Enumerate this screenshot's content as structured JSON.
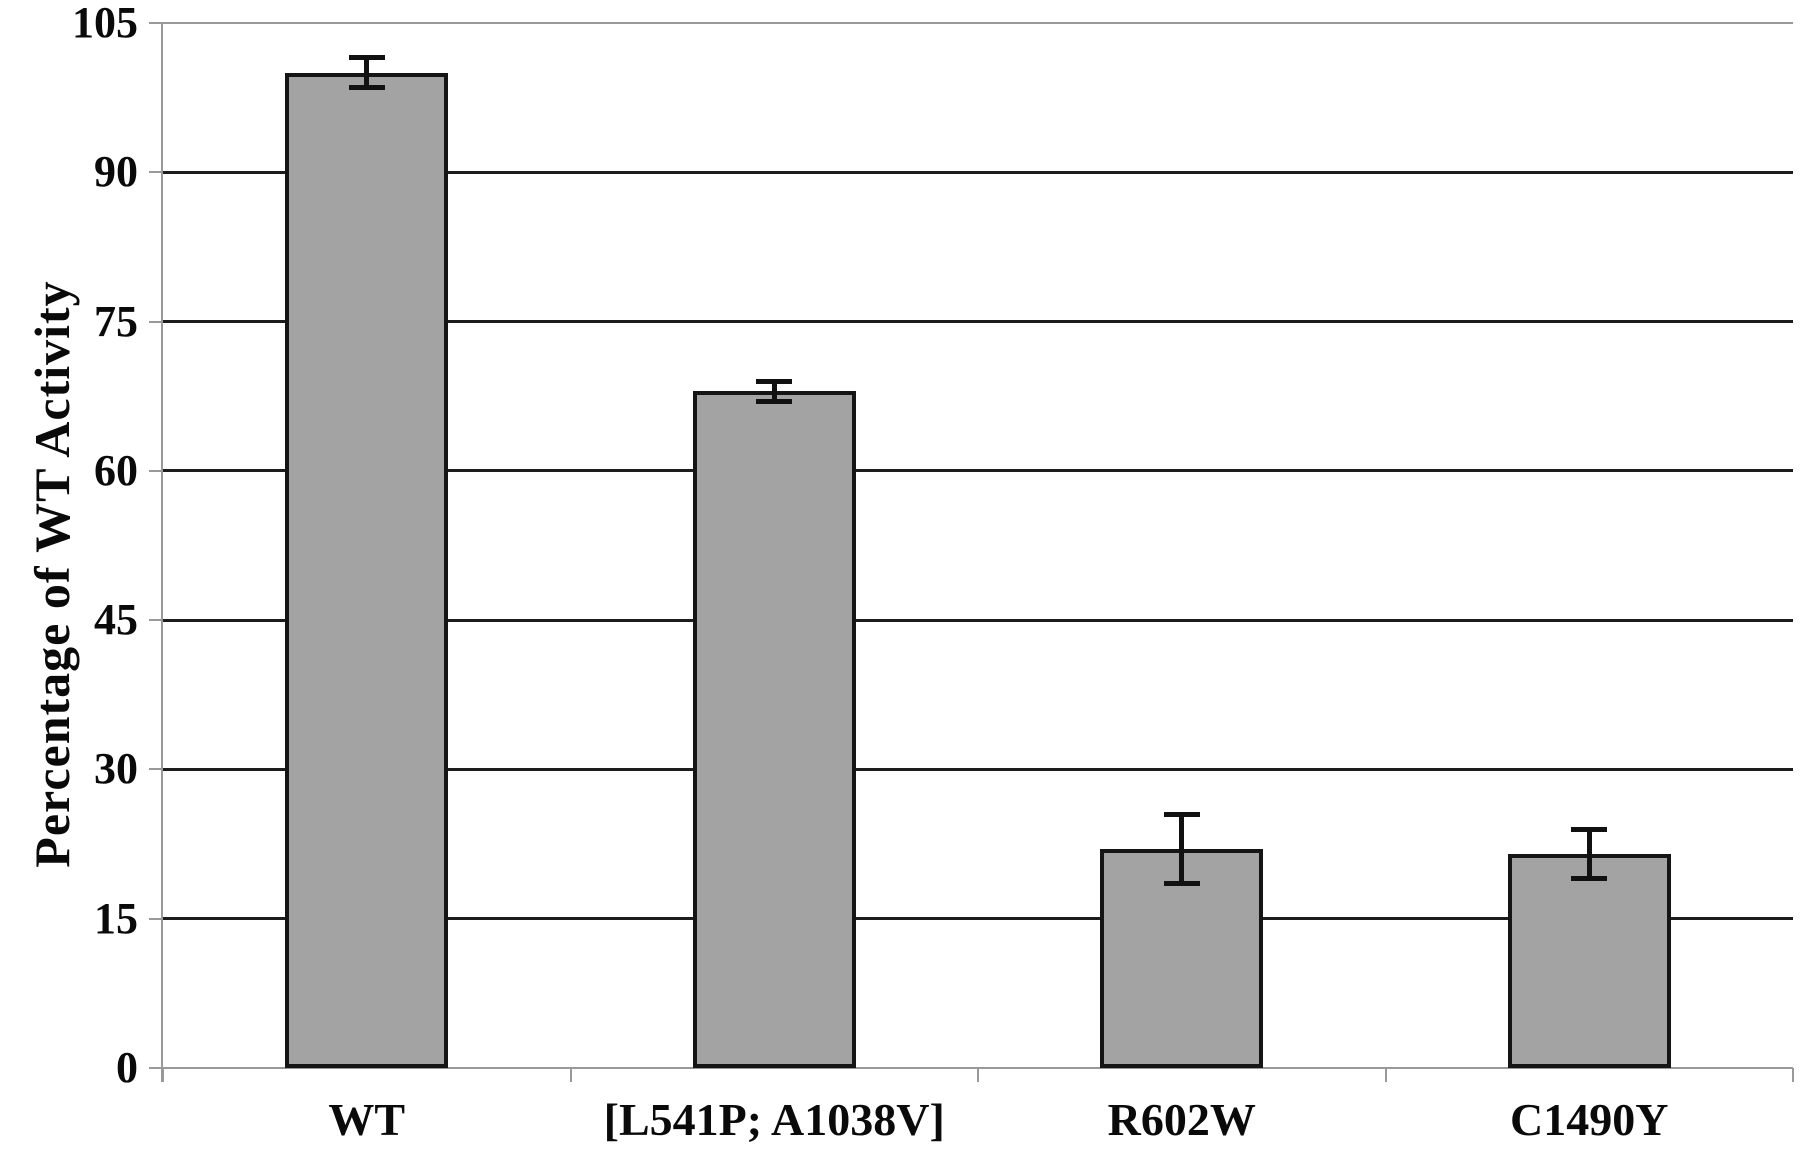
{
  "chart_data": {
    "type": "bar",
    "title": "",
    "ylabel": "Percentage of WT Activity",
    "xlabel": "",
    "categories": [
      "WT",
      "[L541P; A1038V]",
      "R602W",
      "C1490Y"
    ],
    "values": [
      100,
      68,
      22,
      21.5
    ],
    "error_bars": [
      1.5,
      1,
      3.5,
      2.5
    ],
    "ylim": [
      0,
      105
    ],
    "yticks": [
      0,
      15,
      30,
      45,
      60,
      75,
      90,
      105
    ],
    "grid": "horizontal-major",
    "legend": "none",
    "colors": {
      "bar_fill": "#a3a3a3",
      "bar_border": "#151515",
      "gridline": "#1c1c1c",
      "axis_and_boundary": "#999999",
      "error_bar": "#111111",
      "text": "#0a0a0a",
      "background": "#ffffff"
    }
  }
}
